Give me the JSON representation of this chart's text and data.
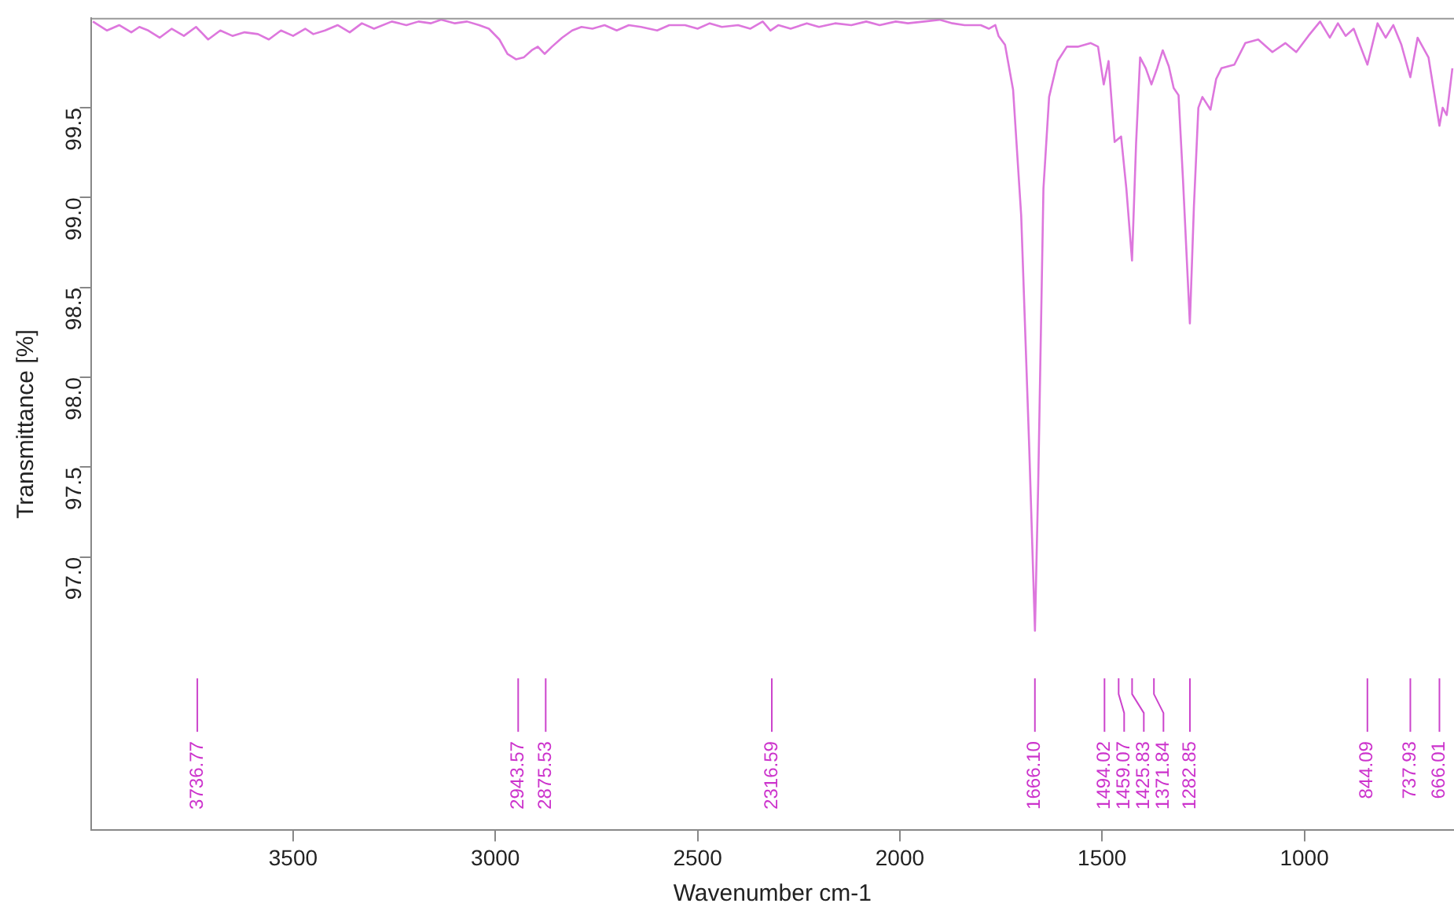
{
  "chart_data": {
    "type": "line",
    "xlabel": "Wavenumber cm-1",
    "ylabel": "Transmittance [%]",
    "xlim": [
      4000,
      630
    ],
    "xticks": [
      3500,
      3000,
      2500,
      2000,
      1500,
      1000
    ],
    "ylim": [
      95.48,
      100.0
    ],
    "yticks": [
      {
        "value": 97,
        "label": "97.0"
      },
      97.5,
      {
        "value": 98,
        "label": "98.0"
      },
      98.5,
      {
        "value": 99,
        "label": "99.0"
      },
      99.5
    ],
    "grid": false,
    "legend": false,
    "marker": "none",
    "line_style": "solid",
    "series": [
      {
        "color": "#dd77dd",
        "x": [
          3995,
          3960,
          3930,
          3900,
          3880,
          3858,
          3830,
          3800,
          3770,
          3740,
          3710,
          3680,
          3650,
          3620,
          3587,
          3560,
          3530,
          3500,
          3470,
          3450,
          3421,
          3390,
          3360,
          3330,
          3300,
          3256,
          3220,
          3190,
          3160,
          3134,
          3100,
          3070,
          3040,
          3016,
          2990,
          2970,
          2949,
          2930,
          2910,
          2895,
          2878,
          2860,
          2835,
          2810,
          2787,
          2760,
          2730,
          2700,
          2670,
          2640,
          2600,
          2570,
          2531,
          2500,
          2470,
          2440,
          2400,
          2370,
          2339,
          2320,
          2300,
          2270,
          2230,
          2200,
          2160,
          2120,
          2083,
          2050,
          2010,
          1980,
          1940,
          1902,
          1870,
          1840,
          1800,
          1780,
          1764,
          1756,
          1740,
          1720,
          1700,
          1680,
          1666,
          1658,
          1645,
          1631,
          1610,
          1587,
          1560,
          1528,
          1510,
          1496,
          1484,
          1469,
          1453,
          1440,
          1426,
          1416,
          1406,
          1392,
          1378,
          1364,
          1350,
          1335,
          1323,
          1311,
          1300,
          1283,
          1273,
          1262,
          1252,
          1232,
          1218,
          1205,
          1173,
          1146,
          1114,
          1079,
          1047,
          1020,
          990,
          961,
          937,
          917,
          898,
          878,
          844,
          819,
          799,
          780,
          760,
          738,
          720,
          693,
          666,
          658,
          648,
          634
        ],
        "values": [
          99.98,
          99.93,
          99.96,
          99.92,
          99.95,
          99.93,
          99.89,
          99.94,
          99.9,
          99.95,
          99.88,
          99.93,
          99.9,
          99.92,
          99.91,
          99.88,
          99.93,
          99.9,
          99.94,
          99.91,
          99.93,
          99.96,
          99.92,
          99.97,
          99.94,
          99.98,
          99.96,
          99.98,
          99.97,
          99.99,
          99.97,
          99.98,
          99.96,
          99.94,
          99.88,
          99.8,
          99.77,
          99.78,
          99.82,
          99.84,
          99.8,
          99.84,
          99.89,
          99.93,
          99.95,
          99.94,
          99.96,
          99.93,
          99.96,
          99.95,
          99.93,
          99.96,
          99.96,
          99.94,
          99.97,
          99.95,
          99.96,
          99.94,
          99.98,
          99.93,
          99.96,
          99.94,
          99.97,
          99.95,
          99.97,
          99.96,
          99.98,
          99.96,
          99.98,
          99.97,
          99.98,
          99.99,
          99.97,
          99.96,
          99.96,
          99.94,
          99.96,
          99.9,
          99.85,
          99.6,
          98.9,
          97.6,
          96.59,
          97.4,
          99.05,
          99.56,
          99.76,
          99.84,
          99.84,
          99.86,
          99.84,
          99.63,
          99.76,
          99.31,
          99.34,
          99.05,
          98.65,
          99.3,
          99.78,
          99.72,
          99.63,
          99.72,
          99.82,
          99.73,
          99.61,
          99.57,
          99.1,
          98.3,
          98.95,
          99.5,
          99.56,
          99.49,
          99.66,
          99.72,
          99.74,
          99.86,
          99.88,
          99.81,
          99.86,
          99.81,
          99.9,
          99.98,
          99.89,
          99.97,
          99.9,
          99.94,
          99.74,
          99.97,
          99.89,
          99.96,
          99.85,
          99.67,
          99.89,
          99.78,
          99.4,
          99.5,
          99.46,
          99.72
        ]
      }
    ],
    "annotations": [
      {
        "text": "3736.77",
        "x": 3736.77
      },
      {
        "text": "2943.57",
        "x": 2943.57
      },
      {
        "text": "2875.53",
        "x": 2875.53
      },
      {
        "text": "2316.59",
        "x": 2316.59
      },
      {
        "text": "1666.10",
        "x": 1666.1
      },
      {
        "text": "1494.02",
        "x": 1494.02
      },
      {
        "text": "1459.07",
        "x": 1459.07
      },
      {
        "text": "1425.83",
        "x": 1425.83
      },
      {
        "text": "1371.84",
        "x": 1371.84
      },
      {
        "text": "1282.85",
        "x": 1282.85
      },
      {
        "text": "844.09",
        "x": 844.09
      },
      {
        "text": "737.93",
        "x": 737.93
      },
      {
        "text": "666.01",
        "x": 666.01
      }
    ]
  }
}
